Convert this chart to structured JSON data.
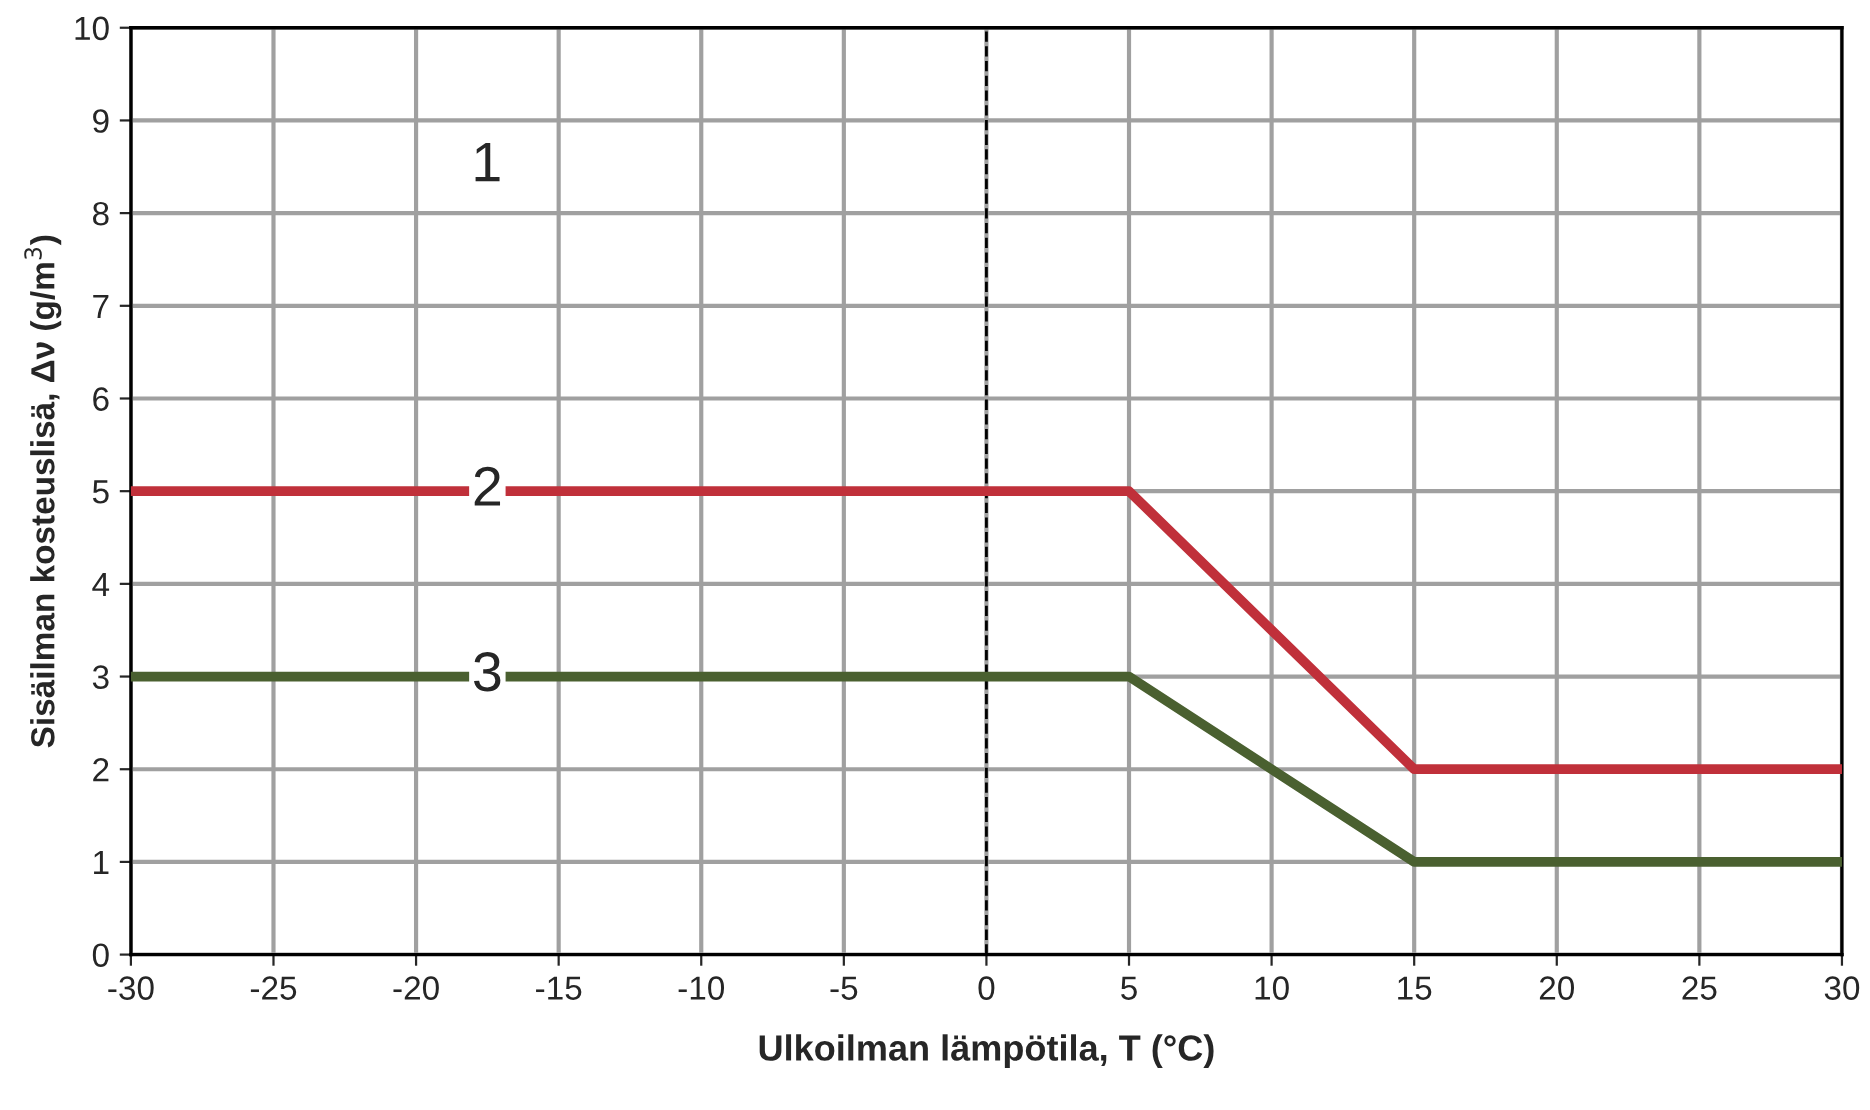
{
  "chart_data": {
    "type": "line",
    "xlabel": "Ulkoilman lämpötila, T (°C)",
    "ylabel": "Sisäilman kosteuslisä, Δν (g/m$^{3}$)",
    "xlim": [
      -30,
      30
    ],
    "xticks": [
      -30,
      -25,
      -20,
      -15,
      -10,
      -5,
      0,
      5,
      10,
      15,
      20,
      25,
      30
    ],
    "ylim": [
      0,
      10
    ],
    "yticks": [
      0,
      1,
      2,
      3,
      4,
      5,
      6,
      7,
      8,
      9,
      10
    ],
    "grid": true,
    "marker": "none",
    "line_style": "solid",
    "series": [
      {
        "name": "2",
        "x": [
          -30,
          5,
          15,
          30
        ],
        "values": [
          5,
          5,
          2,
          2
        ],
        "color": "#c0303a"
      },
      {
        "name": "3",
        "x": [
          -30,
          5,
          15,
          30
        ],
        "values": [
          3,
          3,
          1,
          1
        ],
        "color": "#4a6030"
      }
    ],
    "ref_lines": [
      {
        "axis": "x",
        "value": 0,
        "color": "#000000",
        "line_style": "dashed"
      }
    ],
    "annotations": [
      "1"
    ]
  }
}
